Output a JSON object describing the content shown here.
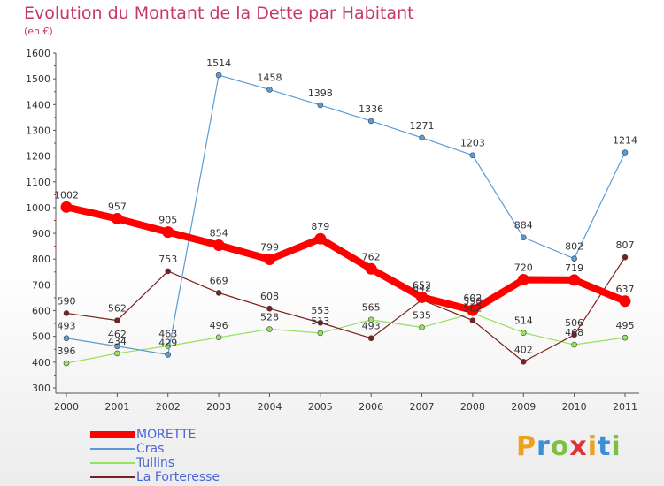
{
  "header": {
    "title": "Evolution du Montant de la Dette par Habitant",
    "subtitle": "(en €)"
  },
  "logo": {
    "text": "Proxiti"
  },
  "chart_data": {
    "type": "line",
    "x": [
      "2000",
      "2001",
      "2002",
      "2003",
      "2004",
      "2005",
      "2006",
      "2007",
      "2008",
      "2009",
      "2010",
      "2011"
    ],
    "ylim": [
      300,
      1600
    ],
    "yticks": [
      300,
      400,
      500,
      600,
      700,
      800,
      900,
      1000,
      1100,
      1200,
      1300,
      1400,
      1500,
      1600
    ],
    "grid": false,
    "legend_position": "bottom-left",
    "series": [
      {
        "name": "MORETTE",
        "color": "#ff0000",
        "values": [
          1002,
          957,
          905,
          854,
          799,
          879,
          762,
          652,
          602,
          720,
          719,
          637
        ]
      },
      {
        "name": "Cras",
        "color": "#5b9bd5",
        "values": [
          493,
          462,
          429,
          1514,
          1458,
          1398,
          1336,
          1271,
          1203,
          884,
          802,
          1214
        ]
      },
      {
        "name": "Tullins",
        "color": "#99e05d",
        "values": [
          396,
          434,
          463,
          496,
          528,
          513,
          565,
          535,
          590,
          514,
          468,
          495
        ]
      },
      {
        "name": "La Forteresse",
        "color": "#7a1f1f",
        "values": [
          590,
          562,
          753,
          669,
          608,
          553,
          493,
          642,
          562,
          402,
          506,
          807
        ]
      }
    ]
  }
}
